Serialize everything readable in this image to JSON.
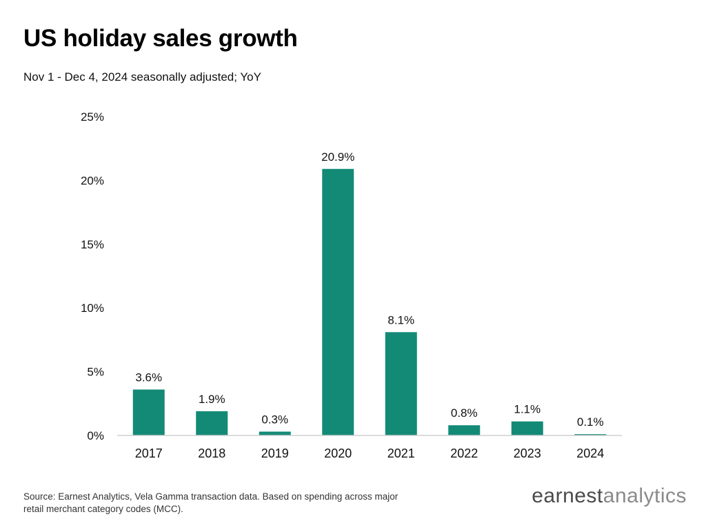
{
  "header": {
    "title": "US holiday sales growth",
    "subtitle": "Nov 1 - Dec 4, 2024 seasonally adjusted; YoY"
  },
  "chart_data": {
    "type": "bar",
    "title": "US holiday sales growth",
    "subtitle": "Nov 1 - Dec 4, 2024 seasonally adjusted; YoY",
    "categories": [
      "2017",
      "2018",
      "2019",
      "2020",
      "2021",
      "2022",
      "2023",
      "2024"
    ],
    "values": [
      3.6,
      1.9,
      0.3,
      20.9,
      8.1,
      0.8,
      1.1,
      0.1
    ],
    "data_labels": [
      "3.6%",
      "1.9%",
      "0.3%",
      "20.9%",
      "8.1%",
      "0.8%",
      "1.1%",
      "0.1%"
    ],
    "y_ticks": [
      0,
      5,
      10,
      15,
      20,
      25
    ],
    "y_tick_labels": [
      "0%",
      "5%",
      "10%",
      "15%",
      "20%",
      "25%"
    ],
    "ylim": [
      0,
      25
    ],
    "xlabel": "",
    "ylabel": "",
    "grid": false,
    "colors": {
      "bar": "#138a76",
      "baseline": "#cfcfcf"
    }
  },
  "footer": {
    "source": "Source: Earnest Analytics, Vela Gamma transaction data. Based on spending across major retail merchant category codes (MCC).",
    "brand_part1": "earnest",
    "brand_part2": "analytics"
  }
}
